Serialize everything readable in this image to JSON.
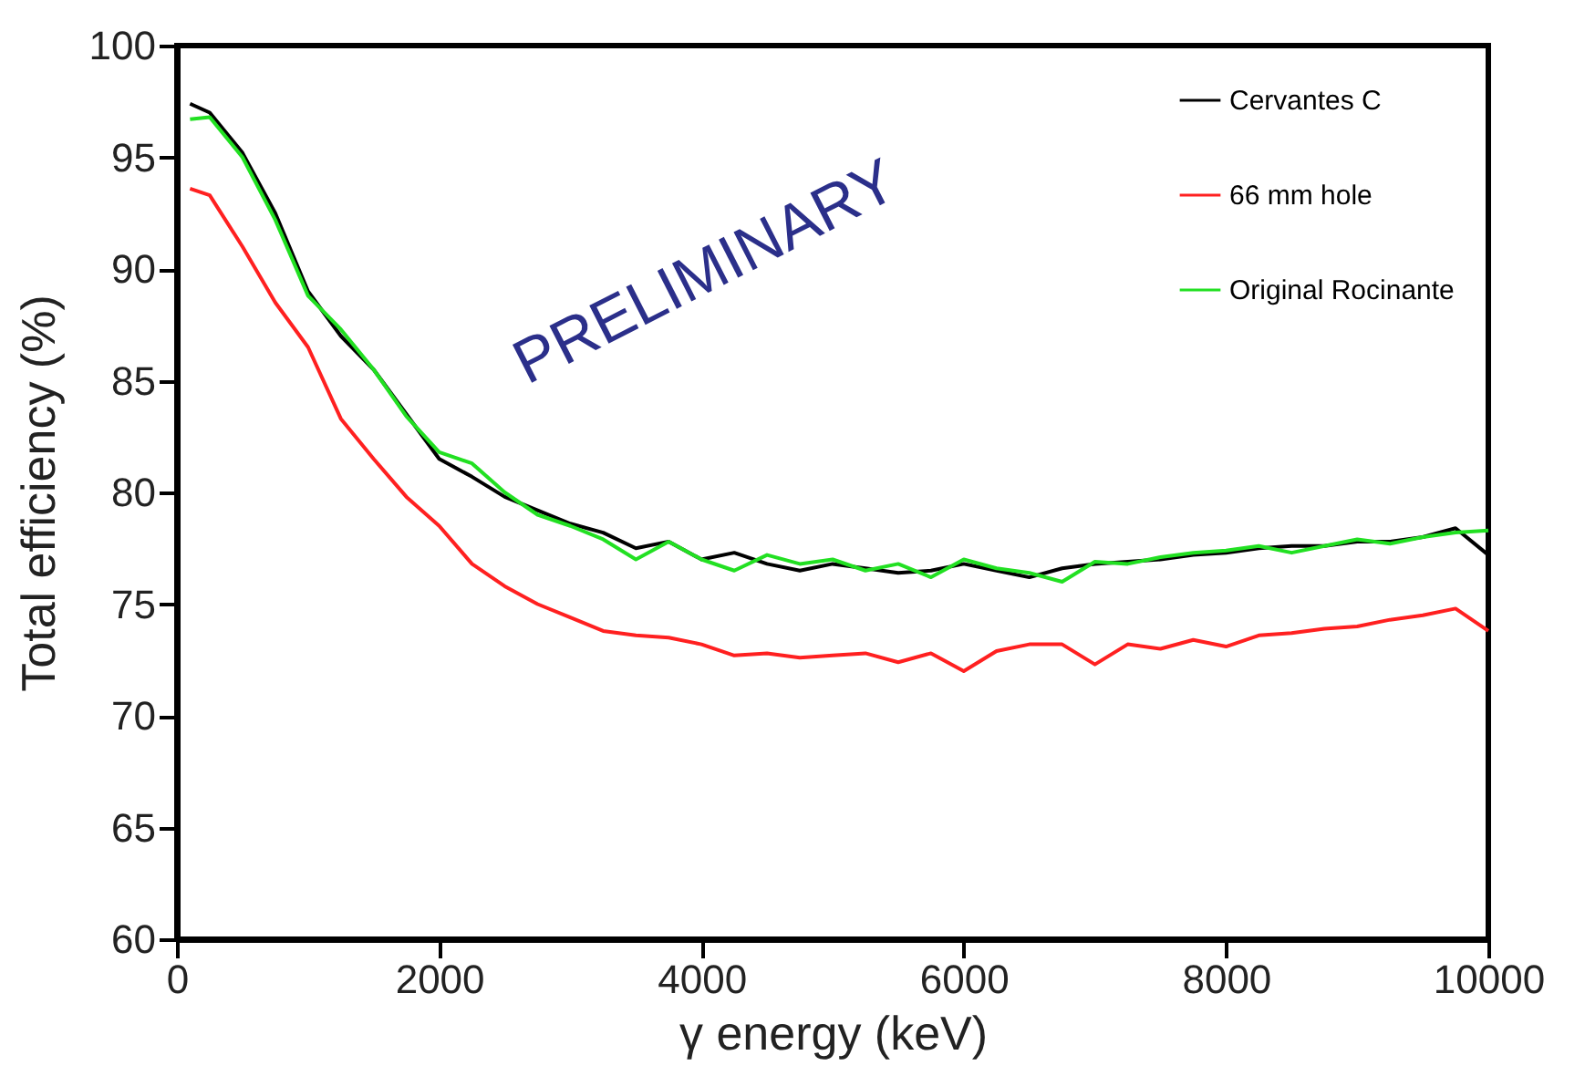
{
  "chart_data": {
    "type": "line",
    "xlabel": "γ energy (keV)",
    "ylabel": "Total efficiency (%)",
    "x": [
      100,
      250,
      500,
      750,
      1000,
      1250,
      1500,
      1750,
      2000,
      2250,
      2500,
      2750,
      3000,
      3250,
      3500,
      3750,
      4000,
      4250,
      4500,
      4750,
      5000,
      5250,
      5500,
      5750,
      6000,
      6250,
      6500,
      6750,
      7000,
      7250,
      7500,
      7750,
      8000,
      8250,
      8500,
      8750,
      9000,
      9250,
      9500,
      9750,
      10000
    ],
    "series": [
      {
        "name": "Cervantes C",
        "color": "#000000",
        "values": [
          97.4,
          97.0,
          95.2,
          92.5,
          89.0,
          87.0,
          85.5,
          83.5,
          81.5,
          80.7,
          79.8,
          79.2,
          78.6,
          78.2,
          77.5,
          77.8,
          77.0,
          77.3,
          76.8,
          76.5,
          76.8,
          76.6,
          76.4,
          76.5,
          76.8,
          76.5,
          76.2,
          76.6,
          76.8,
          76.9,
          77.0,
          77.2,
          77.3,
          77.5,
          77.6,
          77.6,
          77.8,
          77.8,
          78.0,
          78.4,
          77.2
        ]
      },
      {
        "name": "66 mm hole",
        "color": "#ff2020",
        "values": [
          93.6,
          93.3,
          91.0,
          88.5,
          86.5,
          83.3,
          81.5,
          79.8,
          78.5,
          76.8,
          75.8,
          75.0,
          74.4,
          73.8,
          73.6,
          73.5,
          73.2,
          72.7,
          72.8,
          72.6,
          72.7,
          72.8,
          72.4,
          72.8,
          72.0,
          72.9,
          73.2,
          73.2,
          72.3,
          73.2,
          73.0,
          73.4,
          73.1,
          73.6,
          73.7,
          73.9,
          74.0,
          74.3,
          74.5,
          74.8,
          73.8
        ]
      },
      {
        "name": "Original Rocinante",
        "color": "#22e022",
        "values": [
          96.7,
          96.8,
          95.0,
          92.2,
          88.8,
          87.3,
          85.5,
          83.4,
          81.8,
          81.3,
          80.0,
          79.0,
          78.5,
          77.9,
          77.0,
          77.8,
          77.0,
          76.5,
          77.2,
          76.8,
          77.0,
          76.5,
          76.8,
          76.2,
          77.0,
          76.6,
          76.4,
          76.0,
          76.9,
          76.8,
          77.1,
          77.3,
          77.4,
          77.6,
          77.3,
          77.6,
          77.9,
          77.7,
          78.0,
          78.2,
          78.3
        ]
      }
    ],
    "xlim": [
      0,
      10000
    ],
    "xticks": [
      0,
      2000,
      4000,
      6000,
      8000,
      10000
    ],
    "ylim": [
      60,
      100
    ],
    "yticks": [
      60,
      65,
      70,
      75,
      80,
      85,
      90,
      95,
      100
    ],
    "grid": false,
    "legend": "top right",
    "marker": "none",
    "line_style": "solid",
    "annotations": [
      "PRELIMINARY"
    ]
  }
}
